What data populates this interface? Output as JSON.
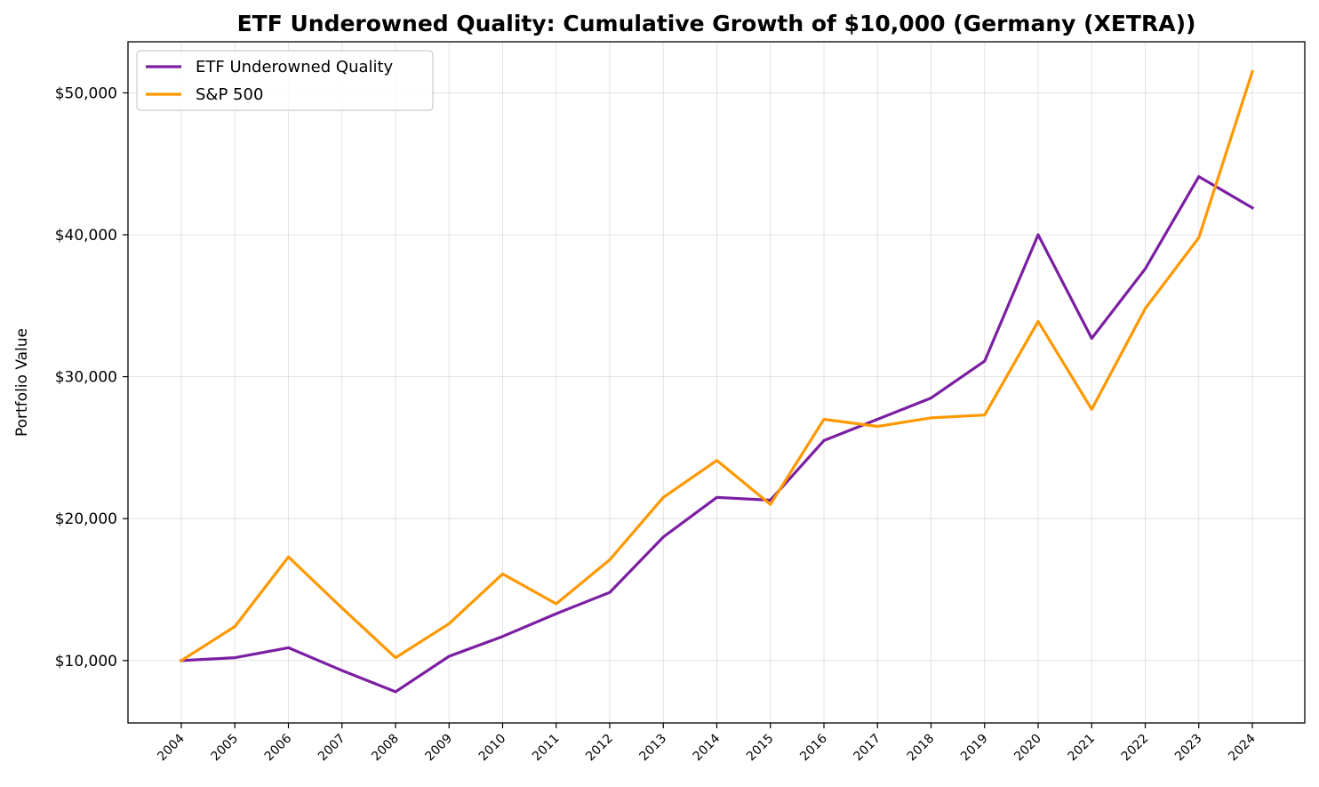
{
  "chart_data": {
    "type": "line",
    "title": "ETF Underowned Quality: Cumulative Growth of $10,000 (Germany (XETRA))",
    "xlabel": "",
    "ylabel": "Portfolio Value",
    "x": [
      "2004",
      "2005",
      "2006",
      "2007",
      "2008",
      "2009",
      "2010",
      "2011",
      "2012",
      "2013",
      "2014",
      "2015",
      "2016",
      "2017",
      "2018",
      "2019",
      "2020",
      "2021",
      "2022",
      "2023",
      "2024"
    ],
    "ylim": [
      5600,
      53600
    ],
    "yticks": [
      10000,
      20000,
      30000,
      40000,
      50000
    ],
    "ytick_labels": [
      "$10,000",
      "$20,000",
      "$30,000",
      "$40,000",
      "$50,000"
    ],
    "grid": true,
    "legend_position": "top-left",
    "series": [
      {
        "name": "ETF Underowned Quality",
        "color": "#7b1fa2",
        "values": [
          10000,
          10200,
          10900,
          9300,
          7800,
          10300,
          11700,
          13300,
          14800,
          18700,
          21500,
          21300,
          25500,
          27000,
          28500,
          31100,
          40000,
          32700,
          37600,
          44100,
          41900
        ]
      },
      {
        "name": "S&P 500",
        "color": "#ff9800",
        "values": [
          10000,
          12400,
          17300,
          13700,
          10200,
          12600,
          16100,
          14000,
          17100,
          21500,
          24100,
          21000,
          27000,
          26500,
          27100,
          27300,
          33900,
          27700,
          34800,
          39800,
          51500
        ]
      }
    ]
  }
}
